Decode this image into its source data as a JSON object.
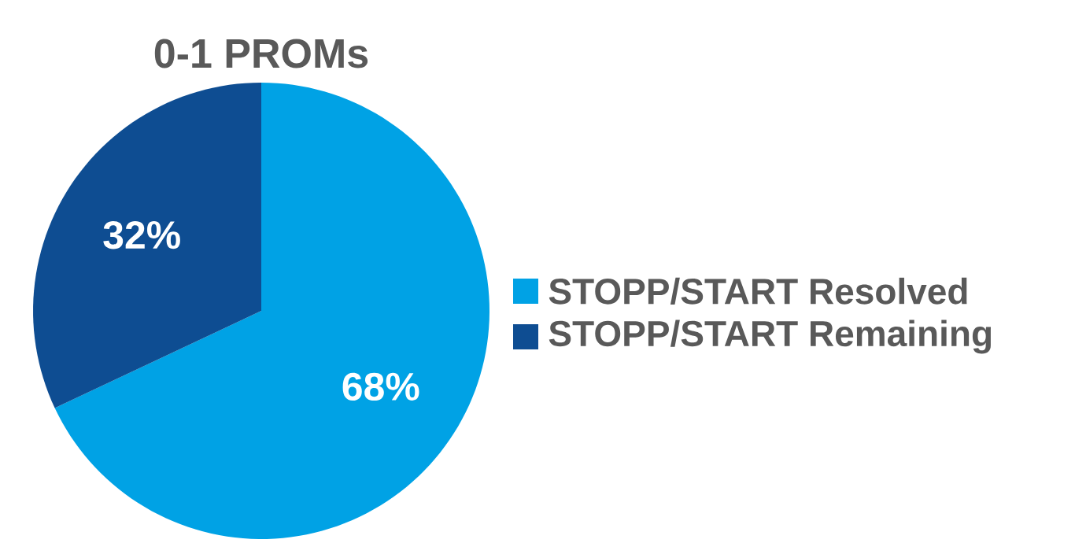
{
  "chart_data": {
    "type": "pie",
    "title": "0-1 PROMs",
    "categories": [
      "STOPP/START Resolved",
      "STOPP/START Remaining"
    ],
    "values": [
      68,
      32
    ],
    "colors": [
      "#00a2e5",
      "#0e4d92"
    ],
    "value_labels": [
      "68%",
      "32%"
    ],
    "legend": "right"
  }
}
